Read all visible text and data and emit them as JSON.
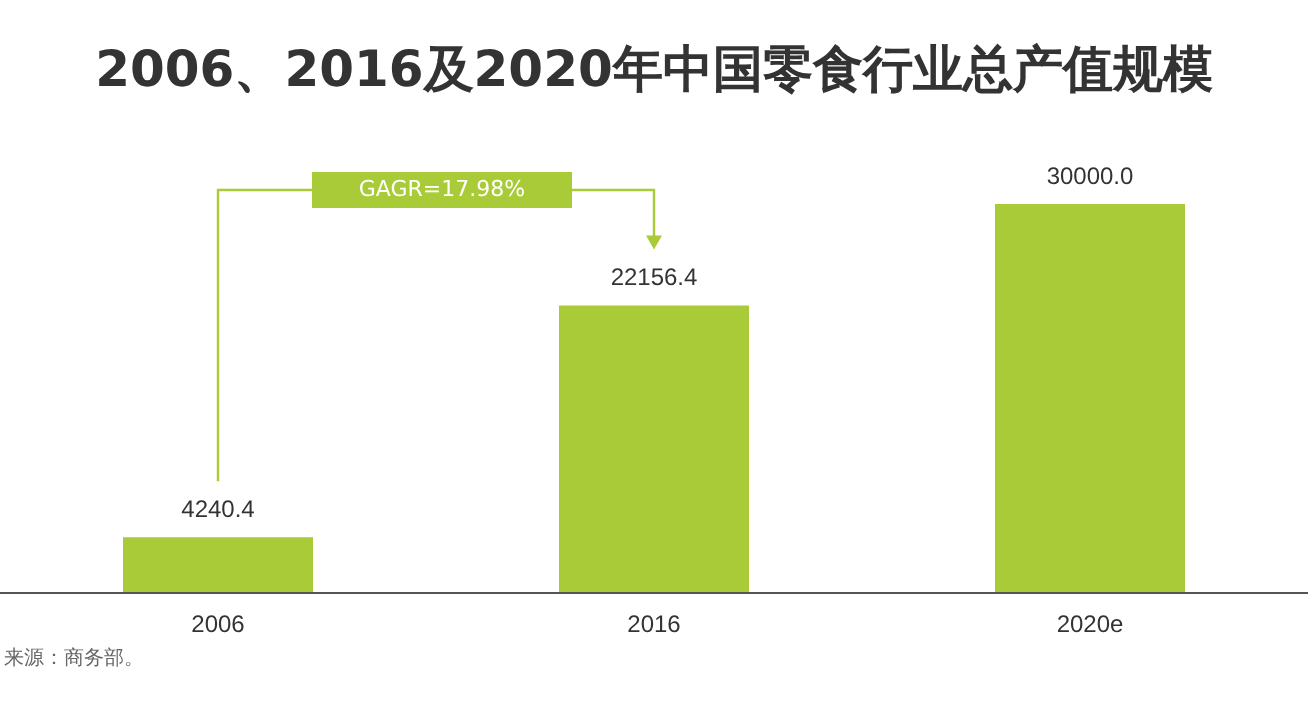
{
  "chart_data": {
    "type": "bar",
    "title": "2006、2016及2020年中国零食行业总产值规模",
    "categories": [
      "2006",
      "2016",
      "2020e"
    ],
    "values": [
      4240.4,
      22156.4,
      30000.0
    ],
    "value_labels": [
      "4240.4",
      "22156.4",
      "30000.0"
    ],
    "color": "#a9cb37",
    "annotations": [
      "GAGR=17.98%",
      "来源：商务部。"
    ]
  }
}
